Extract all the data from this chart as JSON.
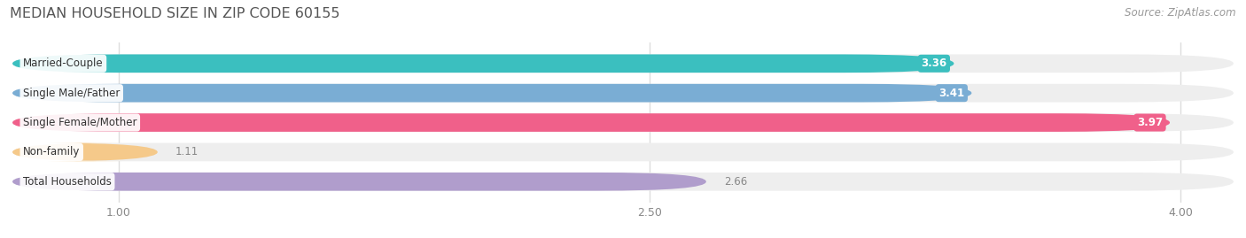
{
  "title": "MEDIAN HOUSEHOLD SIZE IN ZIP CODE 60155",
  "source": "Source: ZipAtlas.com",
  "categories": [
    "Married-Couple",
    "Single Male/Father",
    "Single Female/Mother",
    "Non-family",
    "Total Households"
  ],
  "values": [
    3.36,
    3.41,
    3.97,
    1.11,
    2.66
  ],
  "bar_colors": [
    "#3bbfbf",
    "#7aadd4",
    "#f0608a",
    "#f5c98a",
    "#b09dcc"
  ],
  "xlim_data": [
    0.7,
    4.15
  ],
  "x_axis_min": 0.7,
  "x_axis_max": 4.15,
  "xticks": [
    1.0,
    2.5,
    4.0
  ],
  "background_color": "#ffffff",
  "bar_background": "#eeeeee",
  "title_fontsize": 11.5,
  "source_fontsize": 8.5,
  "bar_height": 0.62,
  "value_label_in_bar": [
    true,
    true,
    true,
    false,
    false
  ],
  "value_label_color_in": "white",
  "value_label_color_out": "#888888"
}
